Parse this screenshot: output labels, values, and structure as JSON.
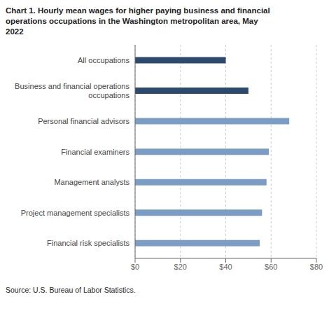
{
  "chart_data": {
    "type": "bar",
    "orientation": "horizontal",
    "title": "Chart 1. Hourly mean wages for higher paying business and financial\noperations occupations in the Washington metropolitan area, May\n2022",
    "categories": [
      "Financial risk specialists",
      "Project management specialists",
      "Management analysts",
      "Financial examiners",
      "Personal financial advisors",
      "Business and financial operations\noccupations",
      "All occupations"
    ],
    "values": [
      55,
      56,
      58,
      59,
      68,
      50,
      40
    ],
    "colors": [
      "#7a9cc5",
      "#7a9cc5",
      "#7a9cc5",
      "#7a9cc5",
      "#7a9cc5",
      "#2b4a6e",
      "#2b4a6e"
    ],
    "xlim": [
      0,
      80
    ],
    "xticks": [
      {
        "value": 0,
        "label": "$0"
      },
      {
        "value": 20,
        "label": "$20"
      },
      {
        "value": 40,
        "label": "$40"
      },
      {
        "value": 60,
        "label": "$60"
      },
      {
        "value": 80,
        "label": "$80"
      }
    ],
    "grid": true,
    "source": "Source: U.S. Bureau of Labor Statistics."
  }
}
